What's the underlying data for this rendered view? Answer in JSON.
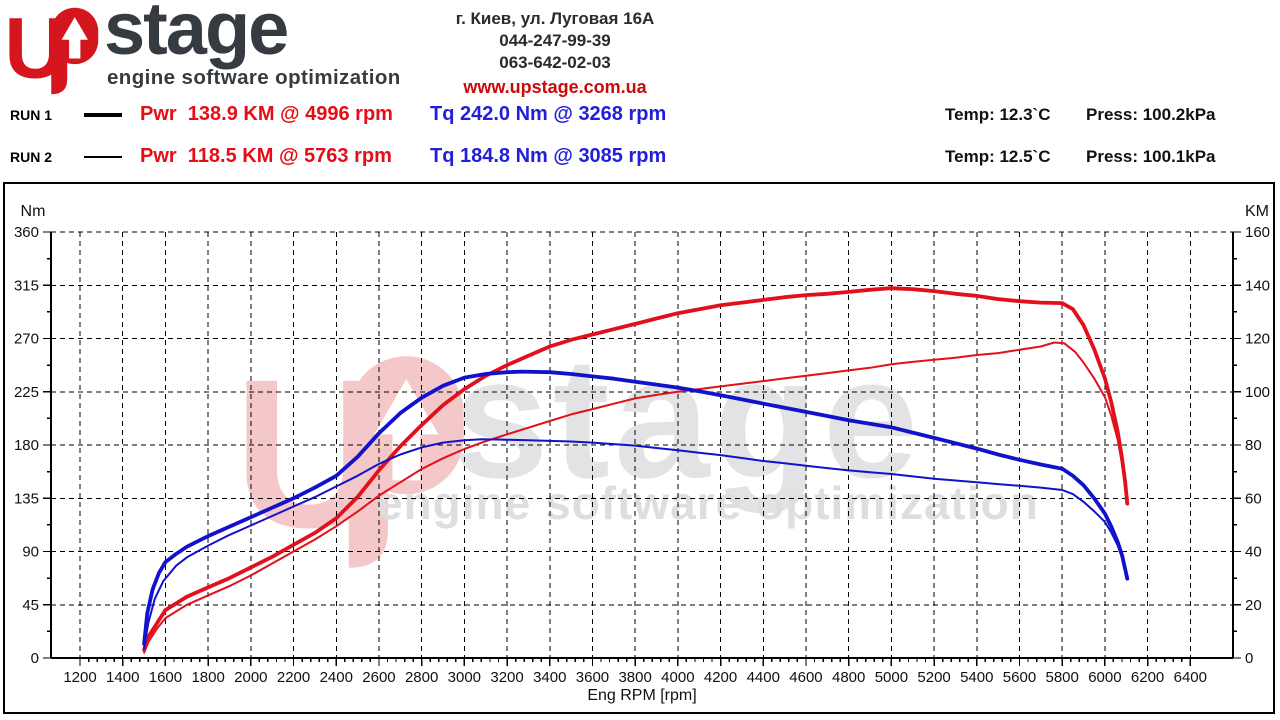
{
  "header": {
    "logo": {
      "name": "stage",
      "tagline": "engine software optimization"
    },
    "address": "г. Киев, ул. Луговая 16А",
    "phone1": "044-247-99-39",
    "phone2": "063-642-02-03",
    "website": "www.upstage.com.ua"
  },
  "runs": [
    {
      "label": "RUN 1",
      "power": "Pwr  138.9 KM @ 4996 rpm",
      "torque": "Tq 242.0 Nm @ 3268 rpm",
      "temp": "Temp: 12.3`C",
      "press": "Press: 100.2kPa"
    },
    {
      "label": "RUN 2",
      "power": "Pwr  118.5 KM @ 5763 rpm",
      "torque": "Tq 184.8 Nm @ 3085 rpm",
      "temp": "Temp: 12.5`C",
      "press": "Press: 100.1kPa"
    }
  ],
  "chart_data": {
    "type": "line",
    "x_axis": {
      "label": "Eng RPM [rpm]",
      "min": 1064,
      "max": 6600,
      "minor_step": 40,
      "ticks": [
        1200,
        1400,
        1600,
        1800,
        2000,
        2200,
        2400,
        2600,
        2800,
        3000,
        3200,
        3400,
        3600,
        3800,
        4000,
        4200,
        4400,
        4600,
        4800,
        5000,
        5200,
        5400,
        5600,
        5800,
        6000,
        6200,
        6400
      ]
    },
    "left_axis": {
      "label": "Nm",
      "min": 0,
      "max": 360,
      "ticks": [
        0,
        45,
        90,
        135,
        180,
        225,
        270,
        315,
        360
      ]
    },
    "right_axis": {
      "label": "KM",
      "min": 0,
      "max": 160,
      "ticks": [
        0,
        20,
        40,
        60,
        80,
        100,
        120,
        140,
        160
      ]
    },
    "grid": true,
    "colors": {
      "power": "#e1101a",
      "torque": "#1212cc"
    },
    "series": [
      {
        "name": "run1-power",
        "axis": "right",
        "color": "#e1101a",
        "width": 3.8,
        "points": [
          [
            1500,
            3
          ],
          [
            1520,
            8
          ],
          [
            1560,
            13
          ],
          [
            1600,
            18
          ],
          [
            1700,
            23
          ],
          [
            1800,
            26.5
          ],
          [
            1900,
            30
          ],
          [
            2000,
            34
          ],
          [
            2100,
            38
          ],
          [
            2200,
            42.5
          ],
          [
            2300,
            47
          ],
          [
            2400,
            52.5
          ],
          [
            2500,
            60.5
          ],
          [
            2600,
            70.5
          ],
          [
            2700,
            79.5
          ],
          [
            2800,
            87.5
          ],
          [
            2900,
            95
          ],
          [
            3000,
            101
          ],
          [
            3100,
            106
          ],
          [
            3200,
            110
          ],
          [
            3300,
            113.5
          ],
          [
            3400,
            117
          ],
          [
            3500,
            119.5
          ],
          [
            3600,
            121.5
          ],
          [
            3700,
            123.5
          ],
          [
            3800,
            125.5
          ],
          [
            3900,
            127.5
          ],
          [
            4000,
            129.5
          ],
          [
            4100,
            131
          ],
          [
            4200,
            132.5
          ],
          [
            4300,
            133.5
          ],
          [
            4400,
            134.5
          ],
          [
            4500,
            135.5
          ],
          [
            4600,
            136.3
          ],
          [
            4700,
            136.8
          ],
          [
            4800,
            137.5
          ],
          [
            4900,
            138.3
          ],
          [
            4996,
            138.9
          ],
          [
            5100,
            138.5
          ],
          [
            5200,
            137.8
          ],
          [
            5300,
            136.8
          ],
          [
            5400,
            136
          ],
          [
            5500,
            134.8
          ],
          [
            5600,
            134
          ],
          [
            5700,
            133.5
          ],
          [
            5800,
            133.3
          ],
          [
            5850,
            131
          ],
          [
            5900,
            125
          ],
          [
            5950,
            116
          ],
          [
            6000,
            105
          ],
          [
            6030,
            96
          ],
          [
            6060,
            85
          ],
          [
            6080,
            75
          ],
          [
            6095,
            66
          ],
          [
            6105,
            58
          ]
        ]
      },
      {
        "name": "run2-power",
        "axis": "right",
        "color": "#e1101a",
        "width": 2,
        "points": [
          [
            1500,
            2
          ],
          [
            1520,
            6
          ],
          [
            1560,
            11
          ],
          [
            1600,
            15
          ],
          [
            1700,
            20
          ],
          [
            1800,
            23.5
          ],
          [
            1900,
            27
          ],
          [
            2000,
            31
          ],
          [
            2100,
            35.5
          ],
          [
            2200,
            40
          ],
          [
            2300,
            44.5
          ],
          [
            2400,
            49.5
          ],
          [
            2500,
            55
          ],
          [
            2600,
            61
          ],
          [
            2700,
            66
          ],
          [
            2800,
            71
          ],
          [
            2900,
            75
          ],
          [
            3000,
            78.5
          ],
          [
            3085,
            81
          ],
          [
            3200,
            84
          ],
          [
            3300,
            86.5
          ],
          [
            3400,
            89
          ],
          [
            3500,
            91.5
          ],
          [
            3600,
            93.5
          ],
          [
            3700,
            95.5
          ],
          [
            3800,
            97.5
          ],
          [
            3900,
            98.8
          ],
          [
            4000,
            100
          ],
          [
            4100,
            101
          ],
          [
            4200,
            102
          ],
          [
            4300,
            103
          ],
          [
            4400,
            104
          ],
          [
            4500,
            105
          ],
          [
            4600,
            106
          ],
          [
            4700,
            107
          ],
          [
            4800,
            108
          ],
          [
            4900,
            109
          ],
          [
            5000,
            110.3
          ],
          [
            5100,
            111.2
          ],
          [
            5200,
            112
          ],
          [
            5300,
            112.8
          ],
          [
            5400,
            113.8
          ],
          [
            5500,
            114.5
          ],
          [
            5600,
            115.8
          ],
          [
            5700,
            117
          ],
          [
            5763,
            118.5
          ],
          [
            5810,
            118.2
          ],
          [
            5860,
            115
          ],
          [
            5900,
            111
          ],
          [
            5950,
            105
          ],
          [
            6000,
            98
          ],
          [
            6030,
            91
          ],
          [
            6060,
            82
          ],
          [
            6080,
            73
          ],
          [
            6095,
            64
          ],
          [
            6100,
            59
          ]
        ]
      },
      {
        "name": "run1-torque",
        "axis": "left",
        "color": "#1212cc",
        "width": 3.8,
        "points": [
          [
            1500,
            12
          ],
          [
            1515,
            38
          ],
          [
            1540,
            58
          ],
          [
            1570,
            72
          ],
          [
            1600,
            81
          ],
          [
            1650,
            88
          ],
          [
            1700,
            94
          ],
          [
            1800,
            103
          ],
          [
            1900,
            111
          ],
          [
            2000,
            119
          ],
          [
            2100,
            127
          ],
          [
            2200,
            135
          ],
          [
            2300,
            144
          ],
          [
            2400,
            154
          ],
          [
            2500,
            170
          ],
          [
            2600,
            190
          ],
          [
            2700,
            207
          ],
          [
            2800,
            220
          ],
          [
            2900,
            230
          ],
          [
            3000,
            237
          ],
          [
            3100,
            240
          ],
          [
            3200,
            241.5
          ],
          [
            3268,
            242
          ],
          [
            3400,
            241.5
          ],
          [
            3500,
            240
          ],
          [
            3600,
            238
          ],
          [
            3700,
            236
          ],
          [
            3800,
            233.5
          ],
          [
            3900,
            231
          ],
          [
            4000,
            228.5
          ],
          [
            4100,
            225.5
          ],
          [
            4200,
            222
          ],
          [
            4300,
            218.5
          ],
          [
            4400,
            215
          ],
          [
            4500,
            211.5
          ],
          [
            4600,
            208
          ],
          [
            4700,
            204.5
          ],
          [
            4800,
            201
          ],
          [
            4900,
            198
          ],
          [
            5000,
            195
          ],
          [
            5100,
            190.5
          ],
          [
            5200,
            186
          ],
          [
            5300,
            181.5
          ],
          [
            5400,
            177
          ],
          [
            5500,
            172
          ],
          [
            5600,
            167.5
          ],
          [
            5700,
            163.5
          ],
          [
            5800,
            160
          ],
          [
            5850,
            154
          ],
          [
            5900,
            146
          ],
          [
            5950,
            135
          ],
          [
            6000,
            122
          ],
          [
            6030,
            111
          ],
          [
            6060,
            98
          ],
          [
            6080,
            87
          ],
          [
            6095,
            75
          ],
          [
            6105,
            67
          ]
        ]
      },
      {
        "name": "run2-torque",
        "axis": "left",
        "color": "#1212cc",
        "width": 2,
        "points": [
          [
            1500,
            8
          ],
          [
            1520,
            30
          ],
          [
            1550,
            50
          ],
          [
            1590,
            65
          ],
          [
            1650,
            78
          ],
          [
            1700,
            85
          ],
          [
            1800,
            95
          ],
          [
            1900,
            104
          ],
          [
            2000,
            112
          ],
          [
            2100,
            120
          ],
          [
            2200,
            128
          ],
          [
            2300,
            136
          ],
          [
            2400,
            145
          ],
          [
            2500,
            154
          ],
          [
            2600,
            164
          ],
          [
            2700,
            172
          ],
          [
            2800,
            178
          ],
          [
            2900,
            182
          ],
          [
            3000,
            184
          ],
          [
            3085,
            184.8
          ],
          [
            3200,
            184.5
          ],
          [
            3300,
            184
          ],
          [
            3400,
            183.5
          ],
          [
            3500,
            183
          ],
          [
            3600,
            182
          ],
          [
            3700,
            180.8
          ],
          [
            3800,
            179.5
          ],
          [
            3900,
            177.5
          ],
          [
            4000,
            175.5
          ],
          [
            4100,
            173.5
          ],
          [
            4200,
            171.5
          ],
          [
            4300,
            169
          ],
          [
            4400,
            166.5
          ],
          [
            4500,
            164.5
          ],
          [
            4600,
            162.5
          ],
          [
            4700,
            160.5
          ],
          [
            4800,
            158.5
          ],
          [
            4900,
            157
          ],
          [
            5000,
            155.5
          ],
          [
            5100,
            153.5
          ],
          [
            5200,
            151.5
          ],
          [
            5300,
            150
          ],
          [
            5400,
            148.5
          ],
          [
            5500,
            147
          ],
          [
            5600,
            145.5
          ],
          [
            5700,
            144
          ],
          [
            5800,
            142
          ],
          [
            5850,
            138.5
          ],
          [
            5900,
            132
          ],
          [
            5950,
            124
          ],
          [
            6000,
            115
          ],
          [
            6030,
            106
          ],
          [
            6060,
            95
          ],
          [
            6080,
            85
          ],
          [
            6095,
            74
          ],
          [
            6100,
            68
          ]
        ]
      }
    ]
  }
}
